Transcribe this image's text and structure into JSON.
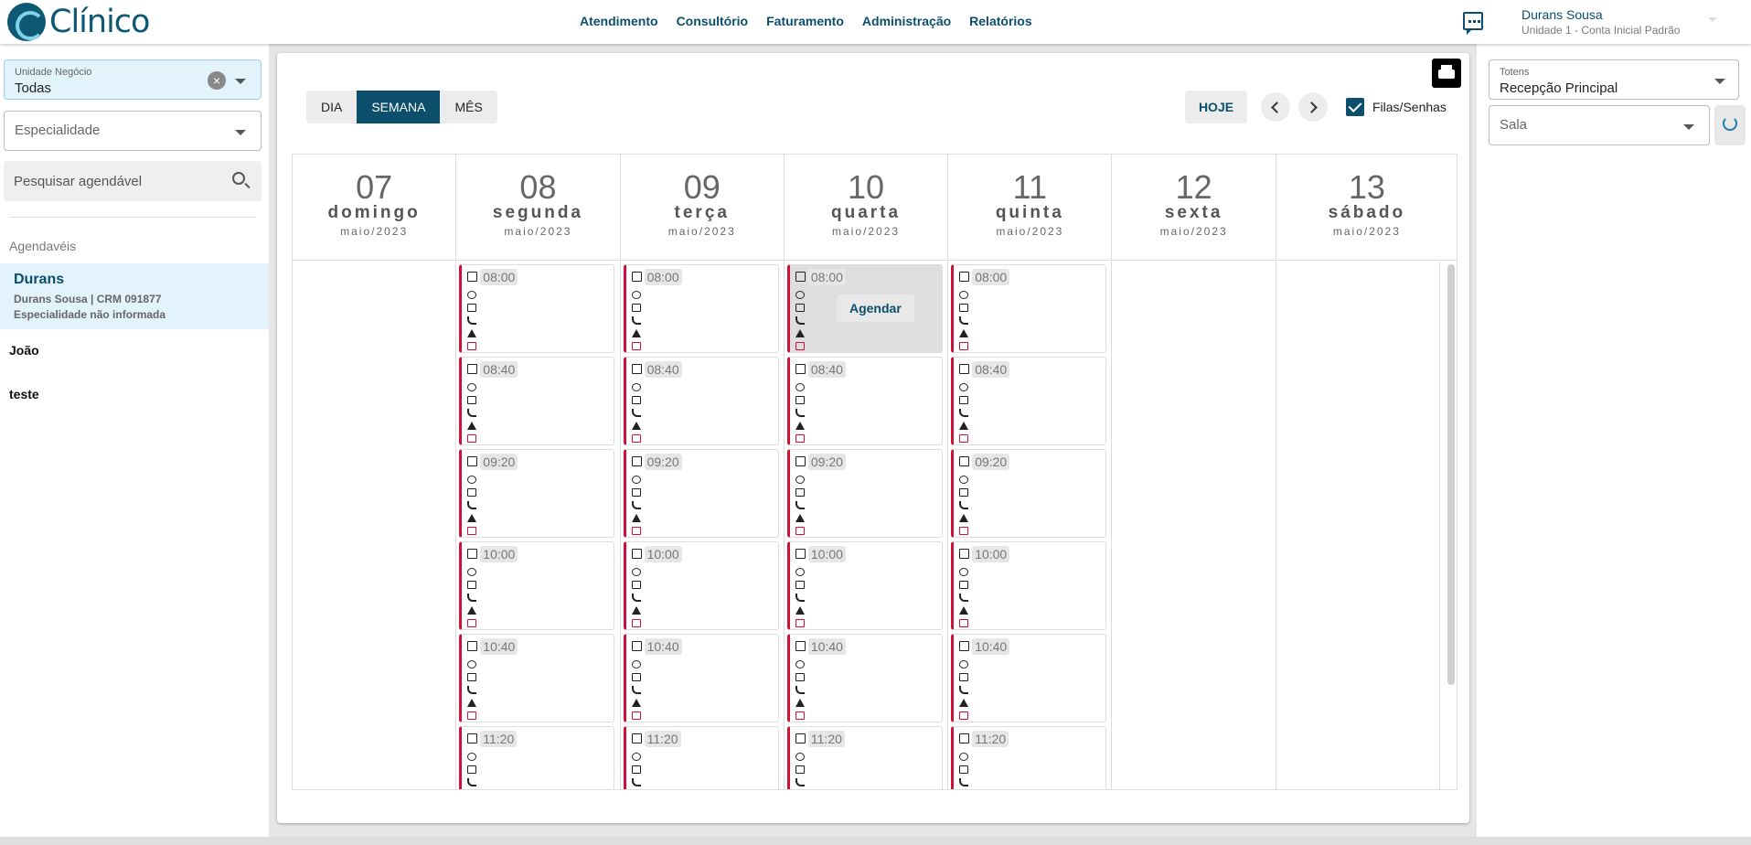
{
  "app": {
    "logo_text": "Clínico"
  },
  "nav": [
    "Atendimento",
    "Consultório",
    "Faturamento",
    "Administração",
    "Relatórios"
  ],
  "user": {
    "name": "Durans Sousa",
    "unit": "Unidade 1 - Conta Inicial Padrão"
  },
  "filters": {
    "unidade_label": "Unidade Negócio",
    "unidade_value": "Todas",
    "especialidade_placeholder": "Especialidade",
    "search_placeholder": "Pesquisar agendável"
  },
  "agendaveis": {
    "title": "Agendavéis",
    "selected": {
      "name": "Durans",
      "detail1": "Durans Sousa | CRM 091877",
      "detail2": "Especialidade não informada"
    },
    "others": [
      "João",
      "teste"
    ]
  },
  "toolbar": {
    "views": [
      "DIA",
      "SEMANA",
      "MÊS"
    ],
    "active_view": "SEMANA",
    "today_label": "HOJE",
    "filas_label": "Filas/Senhas",
    "filas_checked": true
  },
  "calendar": {
    "days": [
      {
        "num": "07",
        "weekday": "domingo",
        "month": "maio/2023",
        "has_slots": false
      },
      {
        "num": "08",
        "weekday": "segunda",
        "month": "maio/2023",
        "has_slots": true
      },
      {
        "num": "09",
        "weekday": "terça",
        "month": "maio/2023",
        "has_slots": true
      },
      {
        "num": "10",
        "weekday": "quarta",
        "month": "maio/2023",
        "has_slots": true
      },
      {
        "num": "11",
        "weekday": "quinta",
        "month": "maio/2023",
        "has_slots": true
      },
      {
        "num": "12",
        "weekday": "sexta",
        "month": "maio/2023",
        "has_slots": false
      },
      {
        "num": "13",
        "weekday": "sábado",
        "month": "maio/2023",
        "has_slots": false
      }
    ],
    "times": [
      "08:00",
      "08:40",
      "09:20",
      "10:00",
      "10:40",
      "11:20"
    ],
    "hover_action": "Agendar",
    "hover_day": "10",
    "hover_time": "08:00"
  },
  "right_panel": {
    "totens_label": "Totens",
    "totens_value": "Recepção Principal",
    "sala_placeholder": "Sala"
  },
  "colors": {
    "primary": "#0c4f6c",
    "slot_border": "#d0103a",
    "selected_bg": "#e2f3fb"
  }
}
